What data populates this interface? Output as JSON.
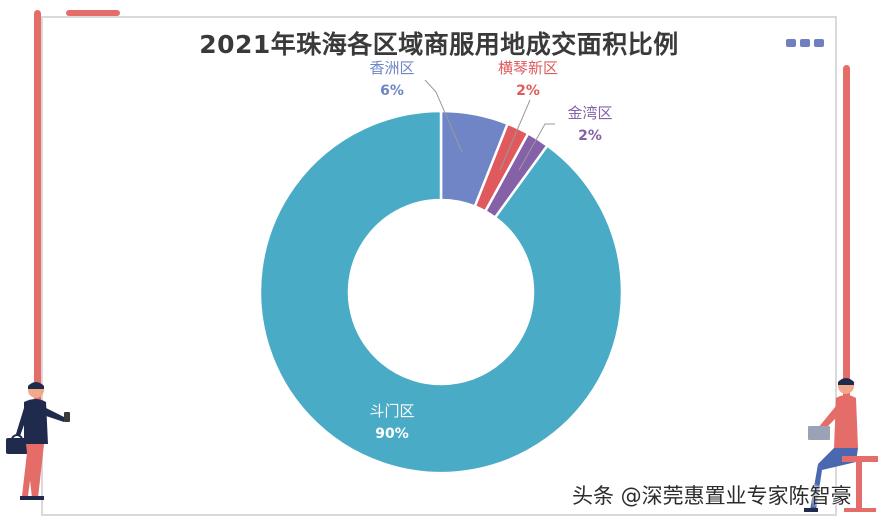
{
  "chart_data": {
    "type": "pie",
    "title": "2021年珠海各区域商服用地成交面积比例",
    "slices": [
      {
        "label": "香洲区",
        "value_label": "6%",
        "value": 6,
        "color": "#6f85c6"
      },
      {
        "label": "横琴新区",
        "value_label": "2%",
        "value": 2,
        "color": "#e0595c"
      },
      {
        "label": "金湾区",
        "value_label": "2%",
        "value": 2,
        "color": "#8562a8"
      },
      {
        "label": "斗门区",
        "value_label": "90%",
        "value": 90,
        "color": "#4aabc6"
      }
    ],
    "donut": true,
    "legend": "none"
  },
  "watermark": {
    "text": "头条 @深莞惠置业专家陈智豪"
  },
  "colors": {
    "accent": "#e46d6a",
    "menu_dots": "#6f7fbf"
  },
  "icons": {
    "menu": "more-dots-icon"
  }
}
